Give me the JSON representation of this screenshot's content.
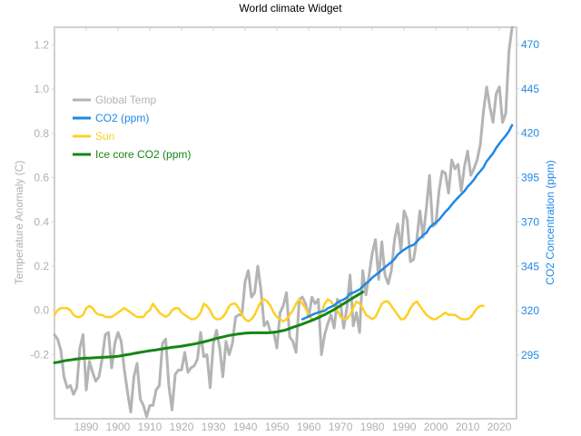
{
  "chart_data": {
    "type": "line",
    "title": "World climate Widget",
    "xlabel": "",
    "ylabel": "Temperature Anomaly (C)",
    "ylabel_right": "CO2 Concentration (ppm)",
    "xlim": [
      1880,
      2025.4
    ],
    "ylim": [
      -0.49,
      1.28
    ],
    "ylim_right": [
      259.2,
      479.7
    ],
    "grid": false,
    "legend_position": "top-left",
    "x_ticks": [
      "1890",
      "1900",
      "1910",
      "1920",
      "1930",
      "1940",
      "1950",
      "1960",
      "1970",
      "1980",
      "1990",
      "2000",
      "2010",
      "2020"
    ],
    "y_ticks_left": [
      "-0.2",
      "0.0",
      "0.2",
      "0.4",
      "0.6",
      "0.8",
      "1.0",
      "1.2"
    ],
    "y_ticks_right": [
      "295",
      "320",
      "345",
      "370",
      "395",
      "420",
      "445",
      "470"
    ],
    "colors": {
      "temp": "#b4b4b4",
      "co2": "#1e88e5",
      "sun": "#fdd023",
      "icecore": "#168516",
      "axis": "#d0d0d0"
    },
    "series": [
      {
        "name": "Global Temp",
        "axis": "left",
        "x_start": 1880,
        "values": [
          -0.11,
          -0.13,
          -0.18,
          -0.3,
          -0.35,
          -0.34,
          -0.38,
          -0.35,
          -0.17,
          -0.11,
          -0.36,
          -0.23,
          -0.28,
          -0.32,
          -0.3,
          -0.22,
          -0.11,
          -0.1,
          -0.26,
          -0.15,
          -0.1,
          -0.14,
          -0.27,
          -0.37,
          -0.46,
          -0.3,
          -0.24,
          -0.4,
          -0.43,
          -0.48,
          -0.43,
          -0.43,
          -0.36,
          -0.34,
          -0.15,
          -0.13,
          -0.34,
          -0.45,
          -0.29,
          -0.27,
          -0.27,
          -0.19,
          -0.28,
          -0.26,
          -0.25,
          -0.22,
          -0.1,
          -0.21,
          -0.2,
          -0.35,
          -0.15,
          -0.09,
          -0.17,
          -0.3,
          -0.14,
          -0.2,
          -0.15,
          -0.03,
          -0.02,
          -0.02,
          0.13,
          0.18,
          0.06,
          0.08,
          0.2,
          0.09,
          -0.07,
          -0.05,
          -0.1,
          -0.1,
          -0.17,
          -0.01,
          0.02,
          0.08,
          -0.12,
          -0.14,
          -0.19,
          0.05,
          0.06,
          0.03,
          -0.03,
          0.06,
          0.03,
          0.05,
          -0.2,
          -0.11,
          -0.06,
          -0.02,
          -0.08,
          0.05,
          0.03,
          -0.08,
          0.01,
          0.16,
          -0.07,
          -0.01,
          -0.1,
          0.18,
          0.07,
          0.16,
          0.26,
          0.32,
          0.14,
          0.31,
          0.16,
          0.12,
          0.18,
          0.32,
          0.39,
          0.27,
          0.45,
          0.41,
          0.22,
          0.23,
          0.32,
          0.45,
          0.33,
          0.46,
          0.61,
          0.38,
          0.39,
          0.54,
          0.63,
          0.62,
          0.53,
          0.68,
          0.64,
          0.66,
          0.54,
          0.65,
          0.72,
          0.61,
          0.64,
          0.68,
          0.75,
          0.9,
          1.01,
          0.92,
          0.85,
          0.98,
          1.01,
          0.85,
          0.89,
          1.17,
          1.28
        ]
      },
      {
        "name": "CO2 (ppm)",
        "axis": "right",
        "x_start": 1958,
        "values": [
          315.2,
          316.0,
          316.9,
          317.6,
          318.5,
          319.0,
          319.6,
          320.0,
          321.4,
          322.2,
          323.0,
          324.6,
          325.7,
          326.3,
          327.5,
          329.7,
          330.2,
          331.1,
          332.0,
          333.8,
          335.4,
          336.8,
          338.7,
          340.1,
          341.4,
          343.0,
          344.6,
          346.0,
          347.4,
          349.2,
          351.6,
          353.1,
          354.4,
          355.6,
          356.5,
          357.1,
          358.9,
          360.9,
          362.7,
          363.8,
          366.8,
          368.5,
          369.7,
          371.3,
          373.5,
          375.8,
          377.5,
          379.8,
          381.9,
          383.8,
          385.6,
          387.4,
          389.9,
          391.7,
          393.9,
          396.5,
          398.6,
          400.8,
          404.2,
          406.5,
          408.7,
          411.7,
          414.2,
          416.5,
          418.6,
          421.1,
          424.6
        ]
      },
      {
        "name": "Sun",
        "axis": "left",
        "x_start": 1880,
        "values": [
          -0.02,
          0.0,
          0.01,
          0.01,
          0.01,
          0.0,
          -0.02,
          -0.03,
          -0.03,
          -0.02,
          0.01,
          0.02,
          0.01,
          -0.01,
          -0.02,
          -0.02,
          -0.03,
          -0.03,
          -0.03,
          -0.02,
          -0.01,
          0.0,
          0.01,
          0.0,
          -0.01,
          -0.02,
          -0.03,
          -0.03,
          -0.03,
          -0.01,
          0.0,
          0.03,
          0.01,
          -0.01,
          -0.02,
          -0.03,
          -0.02,
          0.0,
          0.01,
          0.01,
          -0.01,
          -0.02,
          -0.03,
          -0.04,
          -0.04,
          -0.03,
          -0.01,
          0.03,
          0.02,
          0.0,
          -0.03,
          -0.04,
          -0.04,
          -0.03,
          -0.01,
          0.02,
          0.03,
          0.03,
          0.01,
          -0.02,
          -0.04,
          -0.05,
          -0.04,
          -0.02,
          0.01,
          0.04,
          0.05,
          0.04,
          0.02,
          -0.01,
          -0.03,
          -0.04,
          -0.05,
          -0.04,
          -0.02,
          0.0,
          0.03,
          0.05,
          0.03,
          0.01,
          -0.02,
          -0.04,
          -0.04,
          -0.03,
          -0.01,
          0.03,
          0.05,
          0.04,
          0.02,
          0.0,
          -0.03,
          -0.04,
          -0.04,
          -0.02,
          0.01,
          0.04,
          0.03,
          0.01,
          -0.02,
          -0.03,
          -0.04,
          -0.03,
          0.0,
          0.03,
          0.04,
          0.04,
          0.02,
          0.0,
          -0.02,
          -0.04,
          -0.04,
          -0.02,
          0.01,
          0.03,
          0.04,
          0.02,
          0.0,
          -0.02,
          -0.03,
          -0.04,
          -0.04,
          -0.03,
          -0.02,
          -0.01,
          -0.02,
          -0.02,
          -0.02,
          -0.03,
          -0.04,
          -0.04,
          -0.04,
          -0.03,
          -0.01,
          0.01,
          0.02,
          0.02
        ]
      },
      {
        "name": "Ice core CO2 (ppm)",
        "axis": "right",
        "x_start": 1880,
        "values": [
          290.7,
          291.0,
          291.4,
          291.8,
          292.1,
          292.3,
          292.6,
          292.8,
          293.0,
          293.2,
          293.3,
          293.4,
          293.5,
          293.6,
          293.7,
          293.8,
          293.9,
          294.0,
          294.1,
          294.2,
          294.4,
          294.7,
          295.0,
          295.3,
          295.6,
          296.0,
          296.3,
          296.6,
          296.9,
          297.2,
          297.5,
          297.8,
          298.0,
          298.3,
          298.6,
          298.9,
          299.1,
          299.4,
          299.6,
          299.8,
          300.1,
          300.4,
          300.7,
          301.0,
          301.3,
          301.7,
          302.1,
          302.5,
          303.0,
          303.4,
          303.9,
          304.4,
          304.9,
          305.3,
          305.7,
          306.1,
          306.4,
          306.7,
          307.0,
          307.2,
          307.4,
          307.5,
          307.6,
          307.6,
          307.6,
          307.6,
          307.6,
          307.6,
          307.7,
          307.9,
          308.1,
          308.5,
          308.9,
          309.4,
          310.0,
          310.7,
          311.3,
          311.9,
          312.5,
          313.2,
          313.9,
          314.6,
          315.3,
          316.1,
          317.0,
          317.8,
          318.8,
          319.7,
          320.7,
          321.8,
          322.9,
          324.0,
          325.1,
          326.2,
          327.3,
          328.4,
          329.5,
          330.6
        ]
      }
    ]
  }
}
